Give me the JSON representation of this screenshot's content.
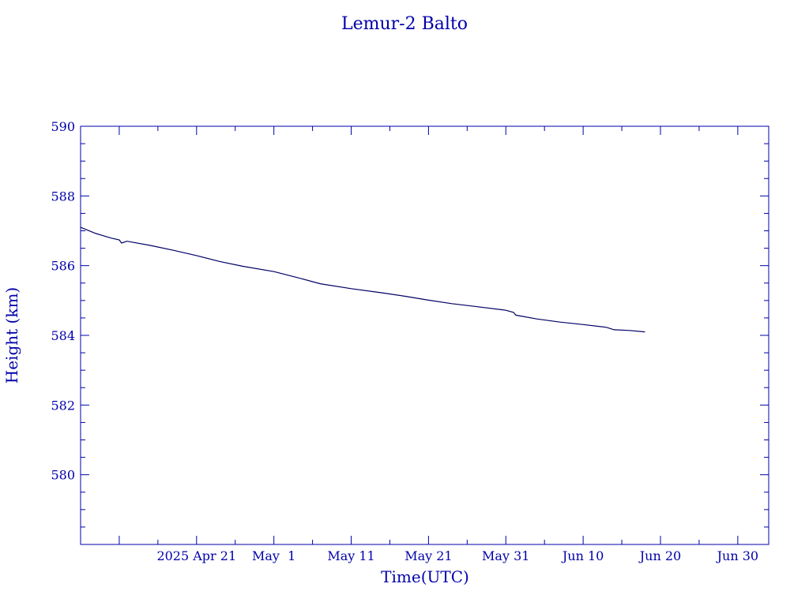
{
  "chart_data": {
    "type": "line",
    "title": "Lemur-2 Balto",
    "xlabel": "Time(UTC)",
    "ylabel": "Height (km)",
    "ylim": [
      578,
      590
    ],
    "xlim": [
      "2025-04-06",
      "2025-07-04"
    ],
    "grid": false,
    "x_major_ticks": [
      "2025-04-21",
      "2025-05-01",
      "2025-05-11",
      "2025-05-21",
      "2025-05-31",
      "2025-06-10",
      "2025-06-20",
      "2025-06-30"
    ],
    "x_tick_labels": [
      "2025 Apr 21",
      "May  1",
      "May 11",
      "May 21",
      "May 31",
      "Jun 10",
      "Jun 20",
      "Jun 30"
    ],
    "y_major_ticks": [
      580,
      582,
      584,
      586,
      588,
      590
    ],
    "y_tick_labels": [
      "580",
      "582",
      "584",
      "586",
      "588",
      "590"
    ],
    "series": [
      {
        "color": "#000066",
        "x": [
          "2025-04-06",
          "2025-04-08",
          "2025-04-10",
          "2025-04-11",
          "2025-04-11",
          "2025-04-12",
          "2025-04-15",
          "2025-04-18",
          "2025-04-21",
          "2025-04-24",
          "2025-04-27",
          "2025-05-01",
          "2025-05-04",
          "2025-05-07",
          "2025-05-11",
          "2025-05-15",
          "2025-05-18",
          "2025-05-21",
          "2025-05-24",
          "2025-05-27",
          "2025-05-31",
          "2025-06-01",
          "2025-06-01",
          "2025-06-04",
          "2025-06-07",
          "2025-06-10",
          "2025-06-13",
          "2025-06-14",
          "2025-06-16",
          "2025-06-18"
        ],
        "y": [
          587.1,
          586.92,
          586.79,
          586.74,
          586.65,
          586.7,
          586.58,
          586.44,
          586.29,
          586.12,
          585.98,
          585.83,
          585.66,
          585.48,
          585.34,
          585.22,
          585.12,
          585.01,
          584.91,
          584.83,
          584.72,
          584.66,
          584.58,
          584.47,
          584.38,
          584.31,
          584.23,
          584.16,
          584.14,
          584.1
        ]
      }
    ]
  }
}
